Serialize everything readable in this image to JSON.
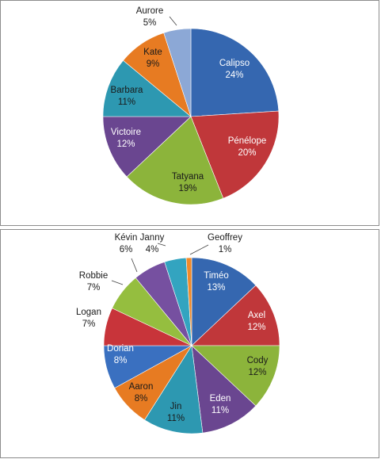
{
  "chart_data": [
    {
      "type": "pie",
      "slices": [
        {
          "label": "Calipso",
          "value": 24,
          "pct_label": "24%",
          "color": "#3567b0"
        },
        {
          "label": "Pénélope",
          "value": 20,
          "pct_label": "20%",
          "color": "#c0373a"
        },
        {
          "label": "Tatyana",
          "value": 19,
          "pct_label": "19%",
          "color": "#8cb43b"
        },
        {
          "label": "Victoire",
          "value": 12,
          "pct_label": "12%",
          "color": "#6a4690"
        },
        {
          "label": "Barbara",
          "value": 11,
          "pct_label": "11%",
          "color": "#2d98b1"
        },
        {
          "label": "Kate",
          "value": 9,
          "pct_label": "9%",
          "color": "#e77b22"
        },
        {
          "label": "Aurore",
          "value": 5,
          "pct_label": "5%",
          "color": "#8ca8d6"
        }
      ]
    },
    {
      "type": "pie",
      "slices": [
        {
          "label": "Timéo",
          "value": 13,
          "pct_label": "13%",
          "color": "#3567b0"
        },
        {
          "label": "Axel",
          "value": 12,
          "pct_label": "12%",
          "color": "#c0373a"
        },
        {
          "label": "Cody",
          "value": 12,
          "pct_label": "12%",
          "color": "#8cb43b"
        },
        {
          "label": "Eden",
          "value": 11,
          "pct_label": "11%",
          "color": "#6a4690"
        },
        {
          "label": "Jin",
          "value": 11,
          "pct_label": "11%",
          "color": "#2d98b1"
        },
        {
          "label": "Aaron",
          "value": 8,
          "pct_label": "8%",
          "color": "#e77b22"
        },
        {
          "label": "Dorian",
          "value": 8,
          "pct_label": "8%",
          "color": "#3a70c0"
        },
        {
          "label": "Logan",
          "value": 7,
          "pct_label": "7%",
          "color": "#c8343a"
        },
        {
          "label": "Robbie",
          "value": 7,
          "pct_label": "7%",
          "color": "#95be3f"
        },
        {
          "label": "Kévin",
          "value": 6,
          "pct_label": "6%",
          "color": "#7650a0"
        },
        {
          "label": "Janny",
          "value": 4,
          "pct_label": "4%",
          "color": "#33a4c0"
        },
        {
          "label": "Geoffrey",
          "value": 1,
          "pct_label": "1%",
          "color": "#f08a2a"
        }
      ]
    }
  ]
}
